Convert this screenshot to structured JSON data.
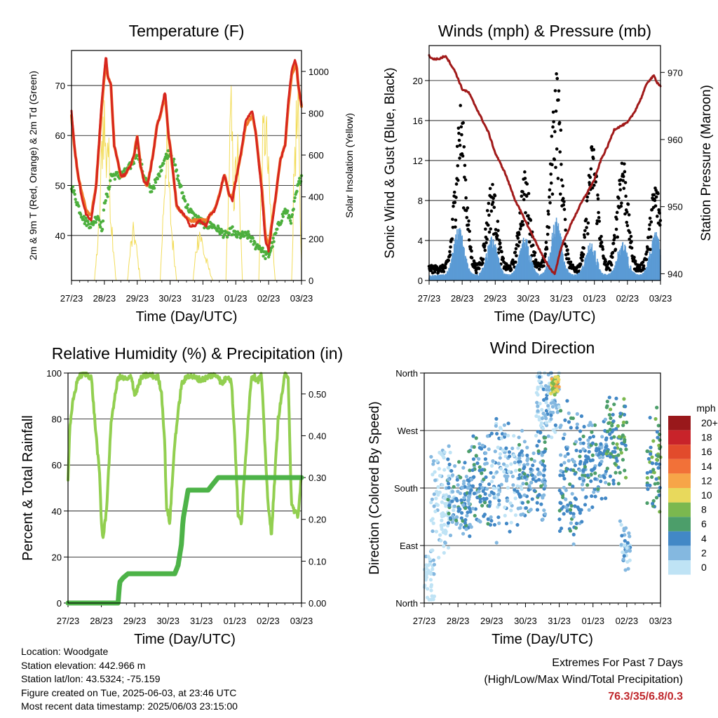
{
  "chart_data": [
    {
      "id": "temperature",
      "type": "line",
      "title": "Temperature (F)",
      "xlabel": "Time (Day/UTC)",
      "ylabel": "2m & 9m T (Red, Orange) & 2m Td (Green)",
      "y2label": "Solar Insolation (Yellow)",
      "x_ticks": [
        "27/23",
        "28/23",
        "29/23",
        "30/23",
        "31/23",
        "01/23",
        "02/23",
        "03/23"
      ],
      "xlim": [
        0,
        7
      ],
      "ylim": [
        31,
        77
      ],
      "y_ticks": [
        40,
        50,
        60,
        70
      ],
      "y2lim": [
        0,
        1100
      ],
      "y2_ticks": [
        0,
        200,
        400,
        600,
        800,
        1000
      ],
      "grid": "horizontal",
      "colors": {
        "t2m": "#d7261e",
        "t9m": "#f07b2a",
        "td": "#4caf3d",
        "solar": "#f2dc5a"
      },
      "series": [
        {
          "name": "2m T",
          "key": "t2m",
          "x": [
            0,
            0.1,
            0.2,
            0.3,
            0.45,
            0.6,
            0.75,
            0.9,
            1.0,
            1.05,
            1.1,
            1.2,
            1.3,
            1.5,
            1.6,
            1.8,
            1.9,
            2.0,
            2.1,
            2.2,
            2.3,
            2.4,
            2.5,
            2.6,
            2.7,
            2.85,
            2.95,
            3.0,
            3.1,
            3.2,
            3.3,
            3.45,
            3.6,
            3.75,
            3.9,
            4.1,
            4.2,
            4.35,
            4.5,
            4.6,
            4.65,
            4.7,
            4.8,
            4.9,
            5.0,
            5.15,
            5.3,
            5.5,
            5.6,
            5.8,
            5.9,
            6.0,
            6.2,
            6.35,
            6.5,
            6.6,
            6.7,
            6.8,
            6.85,
            6.9,
            6.95,
            7.0
          ],
          "values": [
            65,
            57,
            52,
            48,
            44,
            43,
            50,
            65,
            73,
            76,
            72,
            70,
            58,
            52,
            52,
            54,
            56,
            60,
            54,
            51,
            50,
            53,
            57,
            62,
            64,
            69,
            60,
            58,
            52,
            46,
            45,
            44,
            42,
            42,
            43,
            42,
            44,
            45,
            48,
            51,
            52,
            51,
            48,
            47,
            51,
            56,
            63,
            65,
            61,
            48,
            39,
            37,
            47,
            55,
            58,
            67,
            73,
            75,
            74,
            70,
            68,
            66
          ]
        },
        {
          "name": "9m T",
          "key": "t9m",
          "x": [
            0,
            0.1,
            0.2,
            0.3,
            0.45,
            0.6,
            0.75,
            0.9,
            1.0,
            1.05,
            1.1,
            1.2,
            1.3,
            1.5,
            1.6,
            1.8,
            1.9,
            2.0,
            2.1,
            2.2,
            2.3,
            2.4,
            2.5,
            2.6,
            2.7,
            2.85,
            2.95,
            3.0,
            3.1,
            3.2,
            3.3,
            3.45,
            3.6,
            3.75,
            3.9,
            4.1,
            4.2,
            4.35,
            4.5,
            4.6,
            4.65,
            4.7,
            4.8,
            4.9,
            5.0,
            5.15,
            5.3,
            5.5,
            5.6,
            5.8,
            5.9,
            6.0,
            6.2,
            6.35,
            6.5,
            6.6,
            6.7,
            6.8,
            6.85,
            6.9,
            6.95,
            7.0
          ],
          "values": [
            64,
            57,
            52,
            49,
            45,
            44,
            50,
            64,
            72,
            75,
            72,
            70,
            58,
            52,
            52,
            54,
            56,
            60,
            54,
            51,
            50,
            53,
            57,
            62,
            64,
            68,
            60,
            58,
            52,
            46,
            45,
            44,
            43,
            43,
            43,
            43,
            44,
            45,
            48,
            51,
            52,
            51,
            48,
            48,
            51,
            56,
            62,
            64,
            61,
            49,
            40,
            38,
            47,
            55,
            58,
            66,
            72,
            74,
            74,
            70,
            68,
            66
          ]
        },
        {
          "name": "2m Td",
          "key": "td",
          "x": [
            0,
            0.1,
            0.25,
            0.4,
            0.6,
            0.8,
            0.95,
            1.0,
            1.1,
            1.2,
            1.35,
            1.5,
            1.7,
            1.9,
            2.0,
            2.2,
            2.4,
            2.6,
            2.8,
            3.0,
            3.1,
            3.3,
            3.5,
            3.7,
            3.9,
            4.1,
            4.3,
            4.5,
            4.7,
            4.9,
            5.0,
            5.2,
            5.4,
            5.6,
            5.7,
            5.8,
            5.9,
            6.0,
            6.1,
            6.3,
            6.5,
            6.7,
            6.8,
            6.9,
            7.0
          ],
          "values": [
            50,
            48,
            45,
            43,
            42,
            44,
            41,
            47,
            48,
            52,
            52,
            52,
            53,
            55,
            57,
            52,
            49,
            51,
            55,
            57,
            55,
            50,
            46,
            44,
            43,
            42,
            42,
            41,
            40,
            41,
            40,
            40,
            40,
            38,
            38,
            37,
            36,
            36,
            38,
            42,
            45,
            43,
            47,
            50,
            52
          ]
        },
        {
          "name": "Solar Insolation",
          "key": "solar",
          "axis": "y2",
          "x": [
            0,
            0.7,
            0.85,
            0.95,
            1.0,
            1.05,
            1.1,
            1.2,
            1.3,
            1.35,
            1.5,
            1.7,
            1.8,
            1.9,
            2.0,
            2.1,
            2.3,
            2.5,
            2.7,
            2.8,
            2.9,
            2.95,
            3.05,
            3.2,
            3.7,
            3.8,
            3.9,
            4.05,
            4.3,
            4.7,
            4.8,
            4.85,
            4.95,
            5.05,
            5.2,
            5.7,
            5.8,
            5.9,
            6.0,
            6.1,
            6.2,
            6.7,
            6.8,
            6.9,
            6.95,
            7.0
          ],
          "values": [
            0,
            0,
            350,
            950,
            1000,
            700,
            900,
            400,
            150,
            0,
            0,
            0,
            200,
            300,
            150,
            0,
            0,
            0,
            0,
            450,
            900,
            600,
            300,
            0,
            0,
            200,
            300,
            150,
            0,
            0,
            700,
            1000,
            500,
            800,
            0,
            0,
            750,
            950,
            600,
            300,
            0,
            0,
            850,
            950,
            500,
            100
          ]
        }
      ]
    },
    {
      "id": "winds",
      "type": "scatter",
      "title": "Winds (mph) & Pressure (mb)",
      "xlabel": "Time (Day/UTC)",
      "ylabel": "Sonic Wind & Gust (Blue, Black)",
      "y2label": "Station Pressure (Maroon)",
      "x_ticks": [
        "27/23",
        "28/23",
        "29/23",
        "30/23",
        "31/23",
        "01/23",
        "02/23",
        "03/23"
      ],
      "xlim": [
        0,
        7
      ],
      "ylim": [
        0,
        23.5
      ],
      "y_ticks": [
        0,
        4,
        8,
        12,
        16,
        20
      ],
      "y2lim": [
        939,
        974
      ],
      "y2_ticks": [
        940,
        950,
        960,
        970
      ],
      "grid": "horizontal",
      "colors": {
        "wind": "#5b9bd5",
        "gust": "#000000",
        "pressure": "#a11a1a"
      },
      "wind_daily_peaks": [
        {
          "x": 0.9,
          "value": 5.5
        },
        {
          "x": 1.9,
          "value": 4.5
        },
        {
          "x": 2.9,
          "value": 4.5
        },
        {
          "x": 3.85,
          "value": 6.5
        },
        {
          "x": 4.9,
          "value": 4.0
        },
        {
          "x": 5.85,
          "value": 4.0
        },
        {
          "x": 6.85,
          "value": 5.0
        }
      ],
      "gust_daily_peaks": [
        {
          "x": 0.95,
          "value": 18
        },
        {
          "x": 1.9,
          "value": 10
        },
        {
          "x": 2.9,
          "value": 11
        },
        {
          "x": 3.85,
          "value": 21.5
        },
        {
          "x": 4.95,
          "value": 14
        },
        {
          "x": 5.85,
          "value": 13
        },
        {
          "x": 6.85,
          "value": 10
        }
      ],
      "pressure": {
        "x": [
          0,
          0.1,
          0.3,
          0.5,
          0.8,
          1.0,
          1.2,
          1.5,
          1.8,
          2.0,
          2.3,
          2.6,
          2.9,
          3.2,
          3.5,
          3.7,
          3.8,
          3.9,
          4.0,
          4.3,
          4.6,
          5.0,
          5.2,
          5.4,
          5.6,
          5.8,
          6.0,
          6.2,
          6.4,
          6.6,
          6.8,
          6.9,
          7.0
        ],
        "values": [
          972.5,
          972,
          972,
          972.5,
          970,
          967.5,
          967,
          964,
          961,
          958,
          955,
          951,
          948,
          945,
          942,
          940.5,
          940,
          942,
          944,
          947.5,
          950.5,
          954,
          957,
          959,
          961.5,
          962,
          962.5,
          964,
          966,
          968.5,
          969.5,
          968.5,
          968
        ]
      }
    },
    {
      "id": "humidity",
      "type": "line",
      "title": "Relative Humidity (%) & Precipitation (in)",
      "xlabel": "Time (Day/UTC)",
      "ylabel": "Percent & Total Rainfall",
      "x_ticks": [
        "27/23",
        "28/23",
        "29/23",
        "30/23",
        "31/23",
        "01/23",
        "02/23",
        "03/23"
      ],
      "xlim": [
        0,
        7
      ],
      "ylim": [
        0,
        100
      ],
      "y_ticks": [
        0,
        20,
        40,
        60,
        80,
        100
      ],
      "y2lim": [
        0,
        0.55
      ],
      "y2_ticks": [
        "0.00",
        "0.10",
        "0.20",
        "0.30",
        "0.40",
        "0.50"
      ],
      "grid": "horizontal",
      "colors": {
        "rh": "#92cf50",
        "precip": "#4db348"
      },
      "series": [
        {
          "name": "Relative Humidity",
          "key": "rh",
          "x": [
            0,
            0.05,
            0.15,
            0.3,
            0.5,
            0.7,
            0.8,
            0.95,
            1.0,
            1.05,
            1.15,
            1.3,
            1.5,
            1.6,
            1.8,
            1.9,
            2.0,
            2.2,
            2.35,
            2.5,
            2.7,
            2.8,
            2.9,
            2.95,
            3.05,
            3.2,
            3.4,
            3.6,
            3.8,
            4.0,
            4.3,
            4.5,
            4.6,
            4.8,
            4.9,
            5.0,
            5.1,
            5.2,
            5.4,
            5.5,
            5.6,
            5.7,
            5.8,
            5.9,
            6.0,
            6.1,
            6.3,
            6.5,
            6.6,
            6.7,
            6.8,
            6.9,
            7.0
          ],
          "values": [
            53,
            75,
            88,
            98,
            100,
            98,
            80,
            55,
            35,
            28,
            40,
            80,
            98,
            98,
            97,
            99,
            90,
            98,
            99,
            99,
            98,
            92,
            70,
            42,
            35,
            70,
            95,
            99,
            98,
            97,
            99,
            99,
            95,
            99,
            96,
            72,
            38,
            35,
            80,
            99,
            98,
            97,
            99,
            70,
            42,
            30,
            80,
            99,
            99,
            42,
            40,
            38,
            56
          ]
        },
        {
          "name": "Total Precipitation",
          "key": "precip",
          "axis": "y2",
          "x": [
            0,
            1.5,
            1.55,
            1.65,
            1.8,
            2.5,
            3.0,
            3.2,
            3.3,
            3.4,
            3.45,
            3.6,
            4.0,
            4.2,
            4.3,
            4.5,
            4.6,
            5.0,
            7.0
          ],
          "values": [
            0,
            0,
            0.05,
            0.06,
            0.07,
            0.07,
            0.07,
            0.07,
            0.09,
            0.14,
            0.2,
            0.27,
            0.27,
            0.27,
            0.28,
            0.3,
            0.3,
            0.3,
            0.3
          ]
        }
      ]
    },
    {
      "id": "direction",
      "type": "scatter",
      "title": "Wind Direction",
      "xlabel": "Time (Day/UTC)",
      "ylabel": "Direction (Colored By Speed)",
      "x_ticks": [
        "27/23",
        "28/23",
        "29/23",
        "30/23",
        "31/23",
        "01/23",
        "02/23",
        "03/23"
      ],
      "xlim": [
        0,
        7
      ],
      "y_tick_labels": [
        "North",
        "East",
        "South",
        "West",
        "North"
      ],
      "y_tick_values": [
        0,
        90,
        180,
        270,
        360
      ],
      "grid": "horizontal",
      "legend": {
        "title": "mph",
        "position": "right",
        "labels": [
          "20+",
          "18",
          "16",
          "14",
          "12",
          "10",
          "8",
          "6",
          "4",
          "2",
          "0"
        ],
        "colors": [
          "#99181b",
          "#c8232a",
          "#e24b2c",
          "#f27138",
          "#f7a548",
          "#e8d95c",
          "#7bb84f",
          "#4c9e6a",
          "#4288c6",
          "#84b8e0",
          "#bfe3f5"
        ]
      },
      "clusters": [
        {
          "x_range": [
            0,
            0.3
          ],
          "dir_center": 45,
          "dir_spread": 50,
          "speed": 0
        },
        {
          "x_range": [
            0.2,
            0.9
          ],
          "dir_center": 170,
          "dir_spread": 110,
          "speed": 0
        },
        {
          "x_range": [
            0.7,
            1.4
          ],
          "dir_center": 160,
          "dir_spread": 70,
          "speed": 2
        },
        {
          "x_range": [
            1.3,
            2.0
          ],
          "dir_center": 190,
          "dir_spread": 90,
          "speed": 2
        },
        {
          "x_range": [
            2.0,
            2.9
          ],
          "dir_center": 200,
          "dir_spread": 110,
          "speed": 1
        },
        {
          "x_range": [
            2.8,
            3.6
          ],
          "dir_center": 200,
          "dir_spread": 80,
          "speed": 2
        },
        {
          "x_range": [
            3.3,
            4.0
          ],
          "dir_center": 320,
          "dir_spread": 70,
          "speed": 1
        },
        {
          "x_range": [
            3.75,
            4.0
          ],
          "dir_center": 340,
          "dir_spread": 20,
          "speed": 5
        },
        {
          "x_range": [
            4.0,
            4.8
          ],
          "dir_center": 200,
          "dir_spread": 130,
          "speed": 2
        },
        {
          "x_range": [
            4.6,
            5.4
          ],
          "dir_center": 220,
          "dir_spread": 80,
          "speed": 2
        },
        {
          "x_range": [
            5.4,
            6.0
          ],
          "dir_center": 250,
          "dir_spread": 80,
          "speed": 3
        },
        {
          "x_range": [
            5.8,
            6.1
          ],
          "dir_center": 90,
          "dir_spread": 50,
          "speed": 1
        },
        {
          "x_range": [
            6.6,
            7.0
          ],
          "dir_center": 220,
          "dir_spread": 90,
          "speed": 3
        }
      ]
    }
  ],
  "info": {
    "location": "Location: Woodgate",
    "elevation": "Station elevation: 442.966 m",
    "latlon": "Station lat/lon: 43.5324; -75.159",
    "created": "Figure created on Tue, 2025-06-03, at 23:46 UTC",
    "recent": "Most recent data timestamp: 2025/06/03 23:15:00"
  },
  "extremes": {
    "title": "Extremes For Past 7 Days",
    "subtitle": "(High/Low/Max Wind/Total Precipitation)",
    "value": "76.3/35/6.8/0.3"
  }
}
